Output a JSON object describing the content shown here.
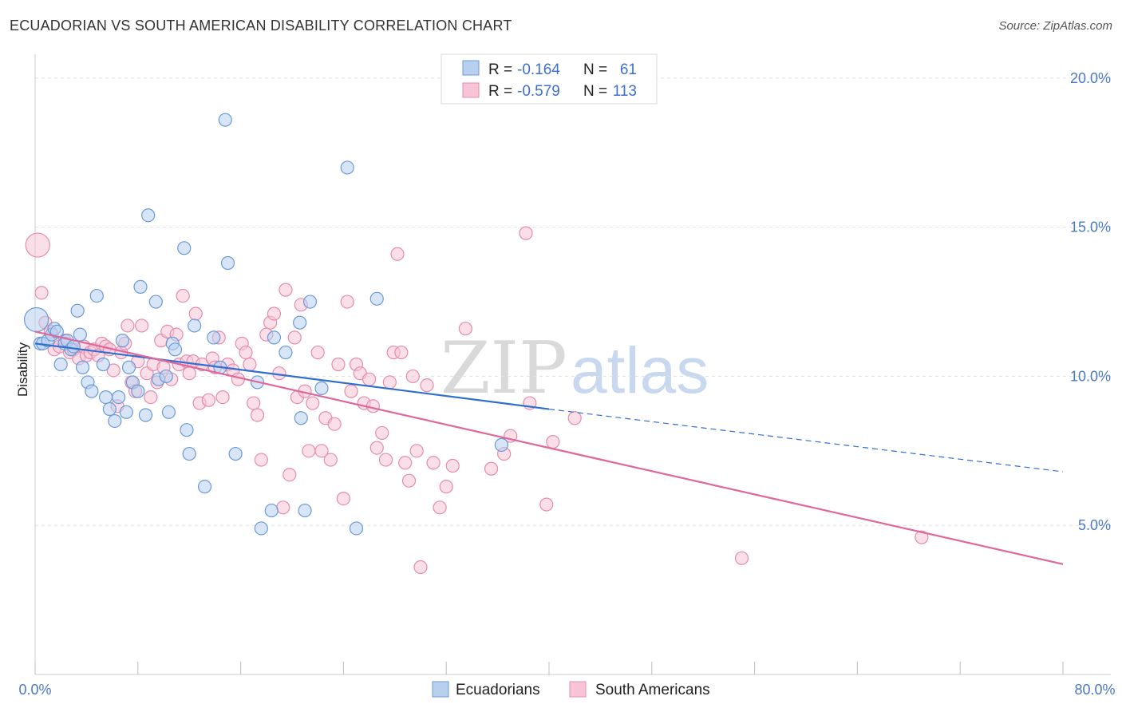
{
  "title": "ECUADORIAN VS SOUTH AMERICAN DISABILITY CORRELATION CHART",
  "source": "Source: ZipAtlas.com",
  "watermark": {
    "zip": "ZIP",
    "atlas": "atlas"
  },
  "colors": {
    "blue_fill": "#b8d0f0",
    "blue_stroke": "#6b9ad8",
    "blue_line": "#2f6fd0",
    "pink_fill": "#f6c4d6",
    "pink_stroke": "#e58cad",
    "pink_line": "#e0679a",
    "grid": "#e2e2e2",
    "axis_text": "#4a78c8"
  },
  "legend": {
    "rows": [
      {
        "r_label": "R =",
        "r_value": "-0.164",
        "n_label": "N =",
        "n_value": "61"
      },
      {
        "r_label": "R =",
        "r_value": "-0.579",
        "n_label": "N =",
        "n_value": "113"
      }
    ]
  },
  "chart_data": {
    "type": "scatter",
    "title": "ECUADORIAN VS SOUTH AMERICAN DISABILITY CORRELATION CHART",
    "xlabel": "",
    "ylabel": "Disability",
    "xlim": [
      0,
      80
    ],
    "ylim": [
      0,
      20.8
    ],
    "x_tick_labels": [
      "0.0%",
      "80.0%"
    ],
    "y_ticks": [
      5,
      10,
      15,
      20
    ],
    "y_tick_labels": [
      "5.0%",
      "10.0%",
      "15.0%",
      "20.0%"
    ],
    "grid": "horizontal dashed",
    "legend_placement": "top-center",
    "series": [
      {
        "name": "Ecuadorians",
        "r": -0.164,
        "n": 61,
        "trend": {
          "x0": 0,
          "y0": 11.1,
          "x1": 40,
          "y1": 8.9,
          "dashed_to_x": 80,
          "dashed_to_y": 6.8
        },
        "points": [
          [
            0.1,
            11.9
          ],
          [
            0.4,
            11.1
          ],
          [
            0.6,
            11.1
          ],
          [
            1.0,
            11.2
          ],
          [
            1.3,
            11.4
          ],
          [
            1.5,
            11.6
          ],
          [
            1.7,
            11.5
          ],
          [
            2.0,
            10.4
          ],
          [
            2.3,
            11.1
          ],
          [
            2.5,
            11.2
          ],
          [
            2.8,
            10.9
          ],
          [
            3.0,
            11.0
          ],
          [
            3.3,
            12.2
          ],
          [
            3.5,
            11.4
          ],
          [
            3.7,
            10.3
          ],
          [
            4.1,
            9.8
          ],
          [
            4.4,
            9.5
          ],
          [
            4.8,
            12.7
          ],
          [
            5.3,
            10.4
          ],
          [
            5.5,
            9.3
          ],
          [
            5.8,
            8.9
          ],
          [
            6.2,
            8.5
          ],
          [
            6.5,
            9.3
          ],
          [
            6.8,
            11.2
          ],
          [
            7.1,
            8.8
          ],
          [
            7.3,
            10.3
          ],
          [
            7.6,
            9.8
          ],
          [
            8.0,
            9.5
          ],
          [
            8.2,
            13.0
          ],
          [
            8.6,
            8.7
          ],
          [
            8.8,
            15.4
          ],
          [
            9.4,
            12.5
          ],
          [
            9.6,
            9.9
          ],
          [
            10.2,
            10.0
          ],
          [
            10.4,
            8.8
          ],
          [
            10.7,
            11.1
          ],
          [
            10.9,
            10.9
          ],
          [
            11.6,
            14.3
          ],
          [
            11.8,
            8.2
          ],
          [
            12.0,
            7.4
          ],
          [
            12.4,
            11.7
          ],
          [
            13.2,
            6.3
          ],
          [
            13.9,
            11.3
          ],
          [
            14.4,
            10.3
          ],
          [
            14.8,
            18.6
          ],
          [
            15.0,
            13.8
          ],
          [
            15.6,
            7.4
          ],
          [
            17.3,
            9.8
          ],
          [
            17.6,
            4.9
          ],
          [
            18.4,
            5.5
          ],
          [
            18.6,
            11.3
          ],
          [
            19.5,
            10.8
          ],
          [
            20.6,
            11.8
          ],
          [
            20.7,
            8.6
          ],
          [
            21.0,
            5.5
          ],
          [
            21.4,
            12.5
          ],
          [
            22.3,
            9.6
          ],
          [
            24.3,
            17.0
          ],
          [
            25.0,
            4.9
          ],
          [
            26.6,
            12.6
          ],
          [
            36.3,
            7.7
          ]
        ]
      },
      {
        "name": "South Americans",
        "r": -0.579,
        "n": 113,
        "trend": {
          "x0": 0,
          "y0": 11.5,
          "x1": 80,
          "y1": 3.7
        },
        "points": [
          [
            0.2,
            14.4
          ],
          [
            0.5,
            12.8
          ],
          [
            0.8,
            11.8
          ],
          [
            1.2,
            11.5
          ],
          [
            1.5,
            10.9
          ],
          [
            1.9,
            11.0
          ],
          [
            2.3,
            11.2
          ],
          [
            2.7,
            10.8
          ],
          [
            3.0,
            10.9
          ],
          [
            3.4,
            10.6
          ],
          [
            3.8,
            11.0
          ],
          [
            4.0,
            10.7
          ],
          [
            4.3,
            10.8
          ],
          [
            4.6,
            10.9
          ],
          [
            4.9,
            10.7
          ],
          [
            5.2,
            11.1
          ],
          [
            5.5,
            11.0
          ],
          [
            5.8,
            10.9
          ],
          [
            6.1,
            10.2
          ],
          [
            6.4,
            9.0
          ],
          [
            6.7,
            10.8
          ],
          [
            7.0,
            11.1
          ],
          [
            7.2,
            11.7
          ],
          [
            7.5,
            9.8
          ],
          [
            7.8,
            9.5
          ],
          [
            8.0,
            10.5
          ],
          [
            8.3,
            11.7
          ],
          [
            8.7,
            10.1
          ],
          [
            9.0,
            9.3
          ],
          [
            9.2,
            10.4
          ],
          [
            9.5,
            9.8
          ],
          [
            9.8,
            11.2
          ],
          [
            10.0,
            10.3
          ],
          [
            10.3,
            11.5
          ],
          [
            10.6,
            9.9
          ],
          [
            11.0,
            11.4
          ],
          [
            11.2,
            10.4
          ],
          [
            11.5,
            12.7
          ],
          [
            11.8,
            10.5
          ],
          [
            12.0,
            10.1
          ],
          [
            12.3,
            10.5
          ],
          [
            12.5,
            12.1
          ],
          [
            12.8,
            9.1
          ],
          [
            13.0,
            10.4
          ],
          [
            13.5,
            9.2
          ],
          [
            13.8,
            10.6
          ],
          [
            14.0,
            10.3
          ],
          [
            14.3,
            11.3
          ],
          [
            14.6,
            9.3
          ],
          [
            15.0,
            10.4
          ],
          [
            15.4,
            10.2
          ],
          [
            15.8,
            9.9
          ],
          [
            16.1,
            11.1
          ],
          [
            16.4,
            10.8
          ],
          [
            16.7,
            10.4
          ],
          [
            17.0,
            9.1
          ],
          [
            17.3,
            8.7
          ],
          [
            17.6,
            7.2
          ],
          [
            18.0,
            11.4
          ],
          [
            18.3,
            11.8
          ],
          [
            18.6,
            12.1
          ],
          [
            19.0,
            10.1
          ],
          [
            19.3,
            5.6
          ],
          [
            19.5,
            12.9
          ],
          [
            19.8,
            6.7
          ],
          [
            20.2,
            11.3
          ],
          [
            20.4,
            9.3
          ],
          [
            20.7,
            12.4
          ],
          [
            21.0,
            9.5
          ],
          [
            21.3,
            7.5
          ],
          [
            21.6,
            9.1
          ],
          [
            22.0,
            10.8
          ],
          [
            22.3,
            7.5
          ],
          [
            22.6,
            8.6
          ],
          [
            23.0,
            7.2
          ],
          [
            23.3,
            8.4
          ],
          [
            23.6,
            10.4
          ],
          [
            24.0,
            5.9
          ],
          [
            24.3,
            12.5
          ],
          [
            24.6,
            9.5
          ],
          [
            25.0,
            10.4
          ],
          [
            25.3,
            10.1
          ],
          [
            25.6,
            9.1
          ],
          [
            26.0,
            9.9
          ],
          [
            26.3,
            9.0
          ],
          [
            26.6,
            7.6
          ],
          [
            27.0,
            8.1
          ],
          [
            27.3,
            7.2
          ],
          [
            27.6,
            9.8
          ],
          [
            27.9,
            10.8
          ],
          [
            28.2,
            14.1
          ],
          [
            28.5,
            10.8
          ],
          [
            28.8,
            7.1
          ],
          [
            29.1,
            6.5
          ],
          [
            29.4,
            10.0
          ],
          [
            29.7,
            7.5
          ],
          [
            30.0,
            3.6
          ],
          [
            30.5,
            9.7
          ],
          [
            31.0,
            7.1
          ],
          [
            31.5,
            5.6
          ],
          [
            32.0,
            6.3
          ],
          [
            32.5,
            7.0
          ],
          [
            33.5,
            11.6
          ],
          [
            35.5,
            6.9
          ],
          [
            36.5,
            7.4
          ],
          [
            37.0,
            8.0
          ],
          [
            38.2,
            14.8
          ],
          [
            38.5,
            9.1
          ],
          [
            39.8,
            5.7
          ],
          [
            40.3,
            7.8
          ],
          [
            42.0,
            8.6
          ],
          [
            55.0,
            3.9
          ],
          [
            69.0,
            4.6
          ]
        ]
      }
    ]
  },
  "bottom_legend": [
    "Ecuadorians",
    "South Americans"
  ]
}
